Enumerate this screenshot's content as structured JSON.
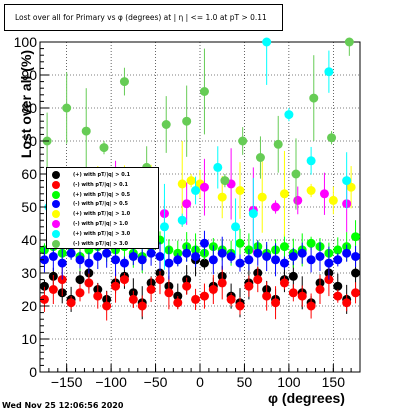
{
  "header": {
    "title": "Lost over all for Primary vs φ (degrees) at | η | <= 1.0 at pT > 0.11"
  },
  "footer": {
    "timestamp": "Wed Nov 25 12:06:56 2020"
  },
  "chart_data": {
    "type": "scatter",
    "title": "Lost over all for Primary vs φ (degrees) at | η | <= 1.0 at pT > 0.11",
    "xlabel": "φ (degrees)",
    "ylabel": "Lost over all (%)",
    "xlim": [
      -180,
      180
    ],
    "ylim": [
      0,
      100
    ],
    "x_ticks": [
      -150,
      -100,
      -50,
      0,
      50,
      100,
      150
    ],
    "y_ticks": [
      0,
      10,
      20,
      30,
      40,
      50,
      60,
      70,
      80,
      90,
      100
    ],
    "x_tick_labels": [
      "−150",
      "−100",
      "−50",
      "0",
      "50",
      "100",
      "150"
    ],
    "y_tick_labels": [
      "0",
      "10",
      "20",
      "30",
      "40",
      "50",
      "60",
      "70",
      "80",
      "90",
      "100"
    ],
    "grid": true,
    "legend_position": "middle-left",
    "series": [
      {
        "name": "(+) with pT/|q| > 0.1",
        "color": "#000000",
        "x": [
          -175,
          -165,
          -155,
          -145,
          -135,
          -125,
          -115,
          -105,
          -95,
          -85,
          -75,
          -65,
          -55,
          -45,
          -35,
          -25,
          -15,
          -5,
          5,
          15,
          25,
          35,
          45,
          55,
          65,
          75,
          85,
          95,
          105,
          115,
          125,
          135,
          145,
          155,
          165,
          175
        ],
        "y": [
          26,
          29,
          24,
          22,
          28,
          30,
          25,
          22,
          27,
          29,
          24,
          21,
          27,
          30,
          26,
          23,
          28,
          34,
          33,
          26,
          29,
          23,
          21,
          27,
          30,
          25,
          22,
          28,
          29,
          24,
          21,
          27,
          30,
          26,
          22,
          30
        ]
      },
      {
        "name": "(-) with pT/|q| > 0.1",
        "color": "#ff0000",
        "x": [
          -175,
          -165,
          -155,
          -145,
          -135,
          -125,
          -115,
          -105,
          -95,
          -85,
          -75,
          -65,
          -55,
          -45,
          -35,
          -25,
          -15,
          -5,
          5,
          15,
          25,
          35,
          45,
          55,
          65,
          75,
          85,
          95,
          105,
          115,
          125,
          135,
          145,
          155,
          165,
          175
        ],
        "y": [
          22,
          25,
          28,
          21,
          24,
          27,
          23,
          20,
          26,
          28,
          22,
          20,
          25,
          28,
          24,
          21,
          26,
          22,
          23,
          25,
          27,
          22,
          20,
          26,
          28,
          23,
          21,
          27,
          24,
          23,
          20,
          25,
          28,
          23,
          21,
          24
        ]
      },
      {
        "name": "(+) with pT/|q| > 0.5",
        "color": "#00ff00",
        "x": [
          -175,
          -165,
          -155,
          -145,
          -135,
          -125,
          -115,
          -105,
          -95,
          -85,
          -75,
          -65,
          -55,
          -45,
          -35,
          -25,
          -15,
          -5,
          5,
          15,
          25,
          35,
          45,
          55,
          65,
          75,
          85,
          95,
          105,
          115,
          125,
          135,
          145,
          155,
          165,
          175
        ],
        "y": [
          37,
          38,
          36,
          38,
          35,
          37,
          38,
          36,
          37,
          38,
          36,
          35,
          38,
          40,
          37,
          36,
          38,
          37,
          36,
          38,
          37,
          36,
          39,
          37,
          38,
          36,
          37,
          38,
          36,
          37,
          39,
          38,
          36,
          37,
          38,
          41
        ]
      },
      {
        "name": "(-) with pT/|q| > 0.5",
        "color": "#0000ff",
        "x": [
          -175,
          -165,
          -155,
          -145,
          -135,
          -125,
          -115,
          -105,
          -95,
          -85,
          -75,
          -65,
          -55,
          -45,
          -35,
          -25,
          -15,
          -5,
          5,
          15,
          25,
          35,
          45,
          55,
          65,
          75,
          85,
          95,
          105,
          115,
          125,
          135,
          145,
          155,
          165,
          175
        ],
        "y": [
          34,
          35,
          33,
          36,
          34,
          33,
          35,
          36,
          34,
          33,
          35,
          34,
          36,
          35,
          33,
          34,
          36,
          35,
          39,
          34,
          36,
          35,
          33,
          34,
          36,
          35,
          34,
          33,
          35,
          36,
          34,
          35,
          33,
          34,
          36,
          35
        ]
      },
      {
        "name": "(+) with pT/|q| > 1.0",
        "color": "#ffff00",
        "x": [
          -165,
          -135,
          -115,
          -85,
          -55,
          -20,
          -10,
          0,
          25,
          45,
          70,
          95,
          125,
          150,
          170
        ],
        "y": [
          55,
          51,
          56,
          54,
          52,
          57,
          58,
          57,
          53,
          55,
          53,
          54,
          55,
          52,
          56
        ]
      },
      {
        "name": "(-) with pT/|q| > 1.0",
        "color": "#ff00ff",
        "x": [
          -160,
          -130,
          -95,
          -70,
          -40,
          -15,
          5,
          35,
          60,
          85,
          110,
          140,
          165
        ],
        "y": [
          53,
          49,
          51,
          55,
          48,
          51,
          56,
          57,
          49,
          50,
          52,
          54,
          51
        ]
      },
      {
        "name": "(+) with pT/|q| > 3.0",
        "color": "#00ffff",
        "x": [
          -170,
          -140,
          -110,
          -90,
          -65,
          -40,
          -20,
          -5,
          20,
          40,
          60,
          75,
          100,
          125,
          145,
          165
        ],
        "y": [
          50,
          47,
          45,
          52,
          48,
          44,
          46,
          55,
          62,
          44,
          48,
          100,
          78,
          64,
          91,
          58
        ]
      },
      {
        "name": "(-) with pT/|q| > 3.0",
        "color": "#66cc55",
        "x": [
          -172,
          -150,
          -128,
          -108,
          -85,
          -60,
          -38,
          -15,
          5,
          28,
          48,
          68,
          88,
          108,
          128,
          148,
          168
        ],
        "y": [
          70,
          80,
          73,
          68,
          88,
          62,
          75,
          76,
          85,
          58,
          70,
          65,
          69,
          60,
          83,
          71,
          100
        ]
      }
    ]
  }
}
